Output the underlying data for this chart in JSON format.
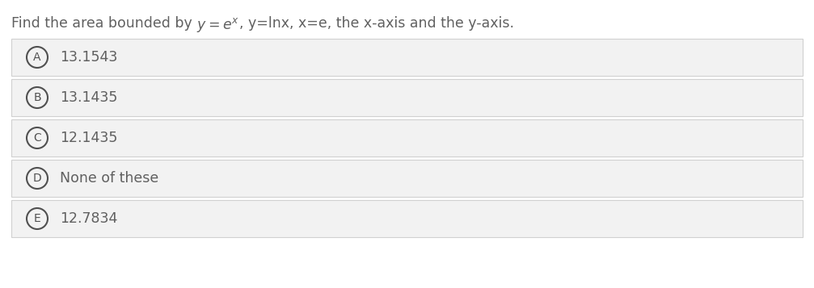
{
  "title_plain": "Find the area bounded by ",
  "title_math": "$y=e^{x}$",
  "title_suffix": ", y=lnx, x=e, the x-axis and the y-axis.",
  "options": [
    {
      "label": "A",
      "text": "13.1543"
    },
    {
      "label": "B",
      "text": "13.1435"
    },
    {
      "label": "C",
      "text": "12.1435"
    },
    {
      "label": "D",
      "text": "None of these"
    },
    {
      "label": "E",
      "text": "12.7834"
    }
  ],
  "bg_color": "#ffffff",
  "option_bg_color": "#f2f2f2",
  "option_border_color": "#d0d0d0",
  "text_color": "#606060",
  "circle_color": "#505050",
  "font_size_title": 12.5,
  "font_size_option": 12.5,
  "font_size_label": 10
}
